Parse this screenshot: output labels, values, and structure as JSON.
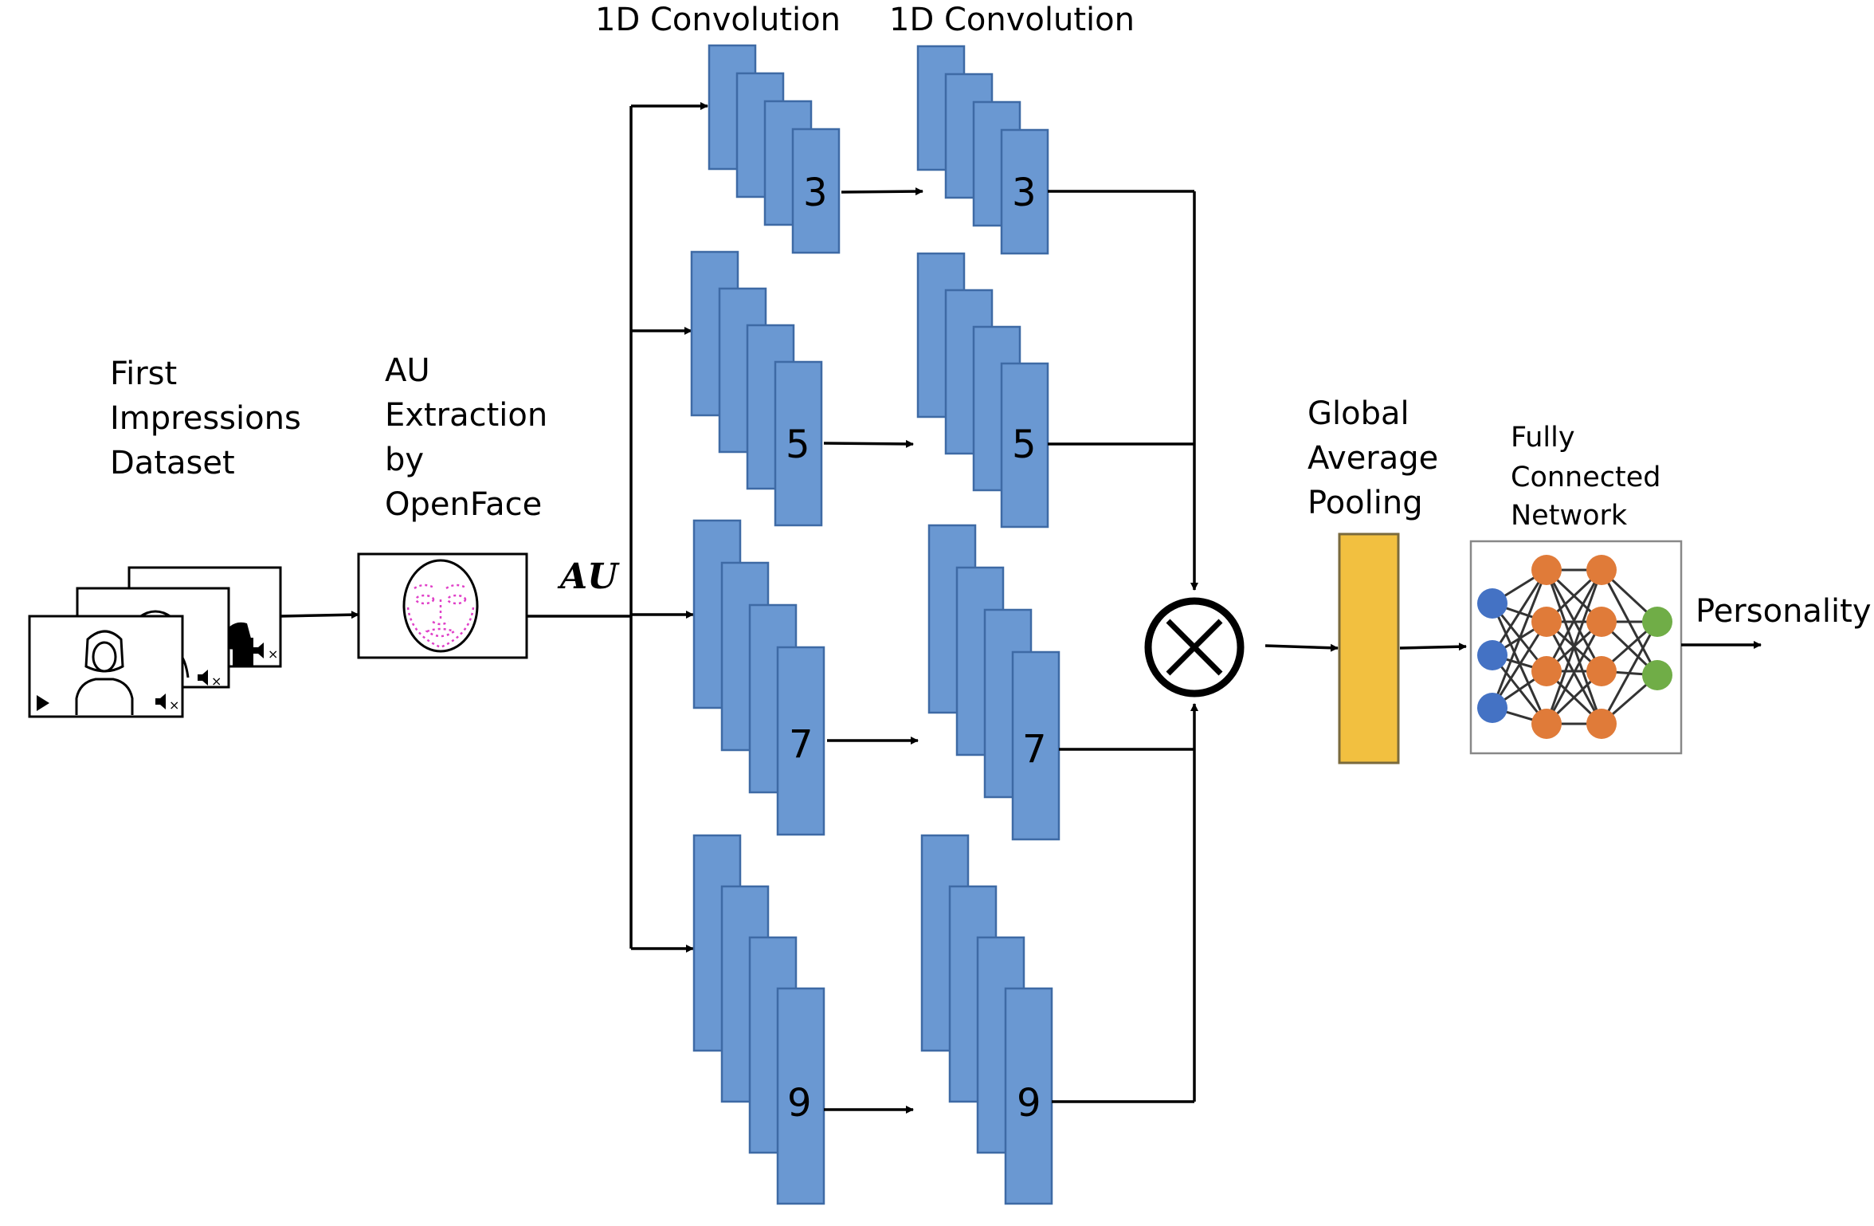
{
  "dataset": {
    "label_line1": "First",
    "label_line2": "Impressions",
    "label_line3": "Dataset"
  },
  "extraction": {
    "label_line1": "AU",
    "label_line2": "Extraction",
    "label_line3": "by",
    "label_line4": "OpenFace"
  },
  "au_label": "AU",
  "conv": {
    "title1": "1D Convolution",
    "title2": "1D Convolution",
    "branches": [
      {
        "kernel_a": "3",
        "kernel_b": "3"
      },
      {
        "kernel_a": "5",
        "kernel_b": "5"
      },
      {
        "kernel_a": "7",
        "kernel_b": "7"
      },
      {
        "kernel_a": "9",
        "kernel_b": "9"
      }
    ]
  },
  "gap": {
    "label_line1": "Global",
    "label_line2": "Average",
    "label_line3": "Pooling"
  },
  "fcn": {
    "label_line1": "Fully",
    "label_line2": "Connected",
    "label_line3": "Network"
  },
  "output_label": "Personality",
  "colors": {
    "feature_map": "#6a98d2",
    "feature_map_border": "#3e6aa5",
    "pooling": "#f2c040",
    "input_node": "#4472c4",
    "hidden_node": "#e07b39",
    "output_node": "#70ad47",
    "landmarks": "#e040c8"
  }
}
